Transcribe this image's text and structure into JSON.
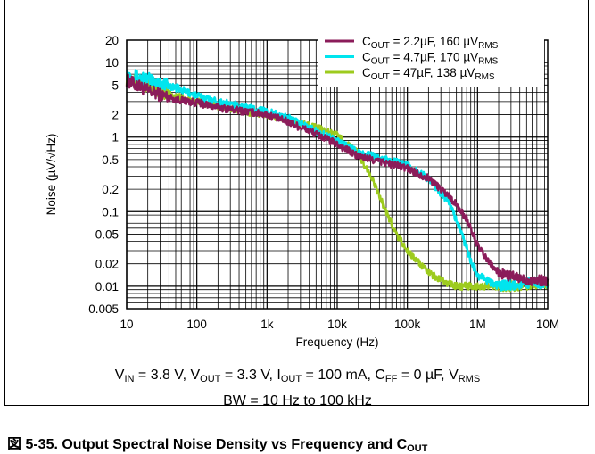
{
  "chart_data": {
    "type": "line",
    "xscale": "log",
    "yscale": "log",
    "xlim": [
      10,
      10000000
    ],
    "ylim": [
      0.005,
      20
    ],
    "xlabel": "Frequency (Hz)",
    "ylabel": "Noise (µV/√Hz)",
    "xticks": [
      {
        "value": 10,
        "label": "10"
      },
      {
        "value": 100,
        "label": "100"
      },
      {
        "value": 1000,
        "label": "1k"
      },
      {
        "value": 10000,
        "label": "10k"
      },
      {
        "value": 100000,
        "label": "100k"
      },
      {
        "value": 1000000,
        "label": "1M"
      },
      {
        "value": 10000000,
        "label": "10M"
      }
    ],
    "yticks": [
      {
        "value": 20,
        "label": "20"
      },
      {
        "value": 10,
        "label": "10"
      },
      {
        "value": 5,
        "label": "5"
      },
      {
        "value": 2,
        "label": "2"
      },
      {
        "value": 1,
        "label": "1"
      },
      {
        "value": 0.5,
        "label": "0.5"
      },
      {
        "value": 0.2,
        "label": "0.2"
      },
      {
        "value": 0.1,
        "label": "0.1"
      },
      {
        "value": 0.05,
        "label": "0.05"
      },
      {
        "value": 0.02,
        "label": "0.02"
      },
      {
        "value": 0.01,
        "label": "0.01"
      },
      {
        "value": 0.005,
        "label": "0.005"
      }
    ],
    "grid": true,
    "legend_position": "top-right",
    "series": [
      {
        "name": "C_OUT = 2.2µF, 160 µV_RMS",
        "color": "#8b1c5a",
        "points": [
          [
            10,
            5.8
          ],
          [
            20,
            4.2
          ],
          [
            50,
            3.2
          ],
          [
            100,
            2.9
          ],
          [
            200,
            2.5
          ],
          [
            500,
            2.2
          ],
          [
            1000,
            2.0
          ],
          [
            2000,
            1.6
          ],
          [
            5000,
            1.1
          ],
          [
            10000,
            0.8
          ],
          [
            20000,
            0.55
          ],
          [
            50000,
            0.45
          ],
          [
            100000,
            0.38
          ],
          [
            200000,
            0.28
          ],
          [
            400000,
            0.16
          ],
          [
            700000,
            0.08
          ],
          [
            1000000,
            0.035
          ],
          [
            1500000,
            0.02
          ],
          [
            2000000,
            0.015
          ],
          [
            5000000,
            0.012
          ],
          [
            10000000,
            0.012
          ]
        ]
      },
      {
        "name": "C_OUT = 4.7µF, 170 µV_RMS",
        "color": "#00e5ee",
        "points": [
          [
            10,
            7.0
          ],
          [
            20,
            6.0
          ],
          [
            50,
            4.6
          ],
          [
            100,
            3.6
          ],
          [
            200,
            3.0
          ],
          [
            500,
            2.5
          ],
          [
            1000,
            2.2
          ],
          [
            2000,
            1.8
          ],
          [
            5000,
            1.2
          ],
          [
            10000,
            0.9
          ],
          [
            20000,
            0.62
          ],
          [
            50000,
            0.5
          ],
          [
            100000,
            0.42
          ],
          [
            200000,
            0.28
          ],
          [
            400000,
            0.13
          ],
          [
            600000,
            0.05
          ],
          [
            800000,
            0.022
          ],
          [
            1000000,
            0.014
          ],
          [
            2000000,
            0.01
          ],
          [
            5000000,
            0.011
          ],
          [
            10000000,
            0.011
          ]
        ]
      },
      {
        "name": "C_OUT = 47µF, 138 µV_RMS",
        "color": "#9dcb1e",
        "points": [
          [
            10,
            6.0
          ],
          [
            20,
            4.8
          ],
          [
            50,
            3.5
          ],
          [
            100,
            3.0
          ],
          [
            200,
            2.6
          ],
          [
            500,
            2.2
          ],
          [
            1000,
            2.0
          ],
          [
            2000,
            1.7
          ],
          [
            5000,
            1.35
          ],
          [
            10000,
            1.05
          ],
          [
            20000,
            0.6
          ],
          [
            30000,
            0.3
          ],
          [
            50000,
            0.1
          ],
          [
            70000,
            0.05
          ],
          [
            100000,
            0.03
          ],
          [
            200000,
            0.015
          ],
          [
            300000,
            0.012
          ],
          [
            500000,
            0.01
          ],
          [
            1000000,
            0.01
          ],
          [
            3000000,
            0.01
          ],
          [
            10000000,
            0.011
          ]
        ]
      }
    ],
    "legend": [
      {
        "pre": "C",
        "sub": "OUT",
        "post": " = 2.2µF, 160 µV",
        "sub2": "RMS",
        "color": "#8b1c5a"
      },
      {
        "pre": "C",
        "sub": "OUT",
        "post": " = 4.7µF, 170 µV",
        "sub2": "RMS",
        "color": "#00e5ee"
      },
      {
        "pre": "C",
        "sub": "OUT",
        "post": " = 47µF, 138 µV",
        "sub2": "RMS",
        "color": "#9dcb1e"
      }
    ]
  },
  "conditions": {
    "line1": {
      "v": "V",
      "vin_sub": "IN",
      "vin_val": " = 3.8 V, V",
      "vout_sub": "OUT",
      "vout_val": " = 3.3 V, I",
      "iout_sub": "OUT",
      "iout_val": " = 100 mA, C",
      "cff_sub": "FF",
      "cff_val": " = 0 µF, V",
      "vrms_sub": "RMS"
    },
    "line2": "BW = 10 Hz to 100 kHz"
  },
  "caption": {
    "prefix": "図 5-35. Output Spectral Noise Density vs Frequency and C",
    "sub": "OUT"
  }
}
